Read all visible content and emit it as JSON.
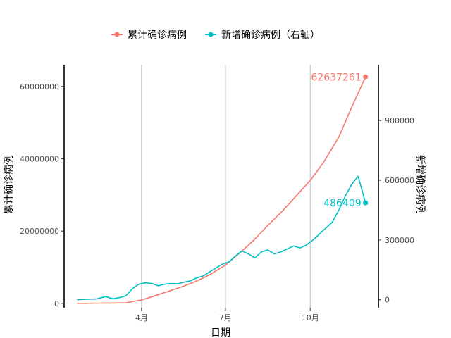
{
  "chart_data": {
    "type": "line",
    "xlabel": "日期",
    "ylabel": "累计确诊病例",
    "y2label": "新增确诊病例",
    "x_ticks": [
      "4月",
      "7月",
      "10月"
    ],
    "y_ticks": [
      "0",
      "20000000",
      "40000000",
      "60000000"
    ],
    "y2_ticks": [
      "0",
      "300000",
      "600000",
      "900000"
    ],
    "ylim": [
      -1200000,
      66000000
    ],
    "y2lim": [
      -40000,
      1180000
    ],
    "legend": {
      "position": "top"
    },
    "grid": {
      "vertical_major": true,
      "horizontal": false
    },
    "series": [
      {
        "name": "累计确诊病例",
        "axis": "left",
        "color": "#F8766D",
        "end_label": "62637261",
        "x": [
          "2020-01-22",
          "2020-02-01",
          "2020-02-15",
          "2020-03-01",
          "2020-03-15",
          "2020-04-01",
          "2020-04-15",
          "2020-05-01",
          "2020-05-15",
          "2020-06-01",
          "2020-06-15",
          "2020-07-01",
          "2020-07-15",
          "2020-08-01",
          "2020-08-15",
          "2020-09-01",
          "2020-09-15",
          "2020-10-01",
          "2020-10-15",
          "2020-11-01",
          "2020-11-15",
          "2020-11-30"
        ],
        "values": [
          550,
          12000,
          70000,
          90000,
          170000,
          950000,
          2050000,
          3400000,
          4600000,
          6300000,
          8100000,
          10600000,
          13600000,
          17500000,
          21300000,
          25600000,
          29500000,
          34000000,
          38800000,
          46000000,
          54300000,
          62637261
        ]
      },
      {
        "name": "新增确诊病例（右轴）",
        "axis": "right",
        "color": "#00BFC4",
        "end_label": "486409",
        "x": [
          "2020-01-22",
          "2020-02-01",
          "2020-02-12",
          "2020-02-22",
          "2020-03-01",
          "2020-03-08",
          "2020-03-15",
          "2020-03-22",
          "2020-03-29",
          "2020-04-05",
          "2020-04-12",
          "2020-04-19",
          "2020-04-26",
          "2020-05-03",
          "2020-05-10",
          "2020-05-17",
          "2020-05-24",
          "2020-05-31",
          "2020-06-07",
          "2020-06-14",
          "2020-06-21",
          "2020-06-28",
          "2020-07-05",
          "2020-07-12",
          "2020-07-19",
          "2020-07-26",
          "2020-08-02",
          "2020-08-09",
          "2020-08-16",
          "2020-08-23",
          "2020-08-30",
          "2020-09-06",
          "2020-09-13",
          "2020-09-20",
          "2020-09-27",
          "2020-10-04",
          "2020-10-11",
          "2020-10-18",
          "2020-10-25",
          "2020-11-01",
          "2020-11-08",
          "2020-11-15",
          "2020-11-22",
          "2020-11-30"
        ],
        "values": [
          0,
          2500,
          4000,
          16000,
          5000,
          11000,
          20000,
          55000,
          78000,
          85000,
          82000,
          70000,
          78000,
          82000,
          80000,
          88000,
          95000,
          110000,
          120000,
          140000,
          160000,
          180000,
          190000,
          220000,
          245000,
          230000,
          210000,
          240000,
          250000,
          230000,
          240000,
          255000,
          270000,
          260000,
          275000,
          300000,
          330000,
          360000,
          390000,
          450000,
          520000,
          580000,
          620000,
          486409
        ]
      }
    ]
  }
}
